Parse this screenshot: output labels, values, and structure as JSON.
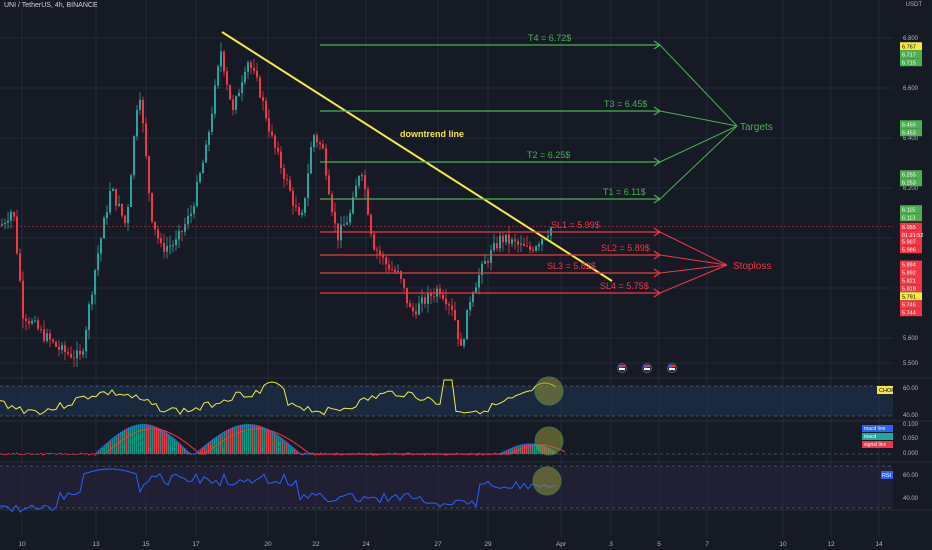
{
  "header": {
    "symbol_line": "UNI / TetherUS, 4h, BINANCE"
  },
  "price_axis": {
    "currency": "USDT",
    "ticks": [
      "6.800",
      "6.600",
      "6.400",
      "6.200",
      "6.000",
      "5.800",
      "5.600",
      "5.500"
    ],
    "tick_values": [
      6.8,
      6.6,
      6.4,
      6.2,
      6.0,
      5.8,
      5.6,
      5.5
    ]
  },
  "price_badges": [
    {
      "text": "6.767",
      "color": "#f5e94a",
      "price": 6.767
    },
    {
      "text": "6.717",
      "color": "#4caf50",
      "price": 6.735
    },
    {
      "text": "6.715",
      "color": "#4caf50",
      "price": 6.703
    },
    {
      "text": "6.455",
      "color": "#4caf50",
      "price": 6.455
    },
    {
      "text": "6.453",
      "color": "#4caf50",
      "price": 6.423
    },
    {
      "text": "6.255",
      "color": "#4caf50",
      "price": 6.255
    },
    {
      "text": "6.253",
      "color": "#4caf50",
      "price": 6.223
    },
    {
      "text": "6.115",
      "color": "#4caf50",
      "price": 6.115
    },
    {
      "text": "6.113",
      "color": "#4caf50",
      "price": 6.083
    },
    {
      "text": "6.055",
      "color": "#f23645",
      "price": 6.045
    },
    {
      "text": "01:21:52",
      "color": "#f23645",
      "price": 6.013
    },
    {
      "text": "5.987",
      "color": "#f23645",
      "price": 5.987
    },
    {
      "text": "5.986",
      "color": "#f23645",
      "price": 5.955
    },
    {
      "text": "5.894",
      "color": "#f23645",
      "price": 5.894
    },
    {
      "text": "5.892",
      "color": "#f23645",
      "price": 5.862
    },
    {
      "text": "5.821",
      "color": "#f23645",
      "price": 5.831
    },
    {
      "text": "5.819",
      "color": "#f23645",
      "price": 5.799
    },
    {
      "text": "5.791",
      "color": "#f5e94a",
      "price": 5.767
    },
    {
      "text": "5.746",
      "color": "#f23645",
      "price": 5.735
    },
    {
      "text": "5.744",
      "color": "#f23645",
      "price": 5.703
    }
  ],
  "levels": [
    {
      "label": "T4 = 6.72$",
      "price": 6.72,
      "color": "#4caf50"
    },
    {
      "label": "T3 = 6.45$",
      "price": 6.45,
      "color": "#4caf50"
    },
    {
      "label": "T2 = 6.25$",
      "price": 6.25,
      "color": "#4caf50"
    },
    {
      "label": "T1 = 6.11$",
      "price": 6.11,
      "color": "#4caf50"
    },
    {
      "label": "SL1 = 5.99$",
      "price": 5.99,
      "color": "#f23645"
    },
    {
      "label": "SL2 = 5.89$",
      "price": 5.89,
      "color": "#f23645"
    },
    {
      "label": "SL3 = 5.82$",
      "price": 5.82,
      "color": "#f23645"
    },
    {
      "label": "SL4 = 5.75$",
      "price": 5.75,
      "color": "#f23645"
    }
  ],
  "annotations": {
    "trendline_label": "downtrend line",
    "targets_label": "Targets",
    "stoploss_label": "Stoploss"
  },
  "indicators": [
    {
      "name": "CHOP",
      "ticks": [
        "60.00",
        "40.00"
      ],
      "badge": "CHOP",
      "badge_color": "#f5e94a",
      "line_color": "#f5e94a"
    },
    {
      "name": "MACD",
      "ticks": [
        "0.100",
        "0.050",
        "0.000"
      ],
      "badges": [
        {
          "text": "macd line",
          "color": "#2962ff"
        },
        {
          "text": "macd",
          "color": "#26a69a"
        },
        {
          "text": "signal line",
          "color": "#f23645"
        }
      ]
    },
    {
      "name": "RSI",
      "ticks": [
        "60.00",
        "40.00"
      ],
      "badge": "RSI",
      "badge_color": "#2962ff",
      "line_color": "#2962ff"
    }
  ],
  "time_axis": [
    "10",
    "13",
    "15",
    "17",
    "20",
    "22",
    "24",
    "27",
    "29",
    "Apr",
    "3",
    "5",
    "7",
    "10",
    "12",
    "14"
  ],
  "colors": {
    "up": "#26a69a",
    "down": "#f23645",
    "bg": "#161a25",
    "grid": "#232838",
    "text": "#b2b5be",
    "trend": "#f5e94a"
  }
}
